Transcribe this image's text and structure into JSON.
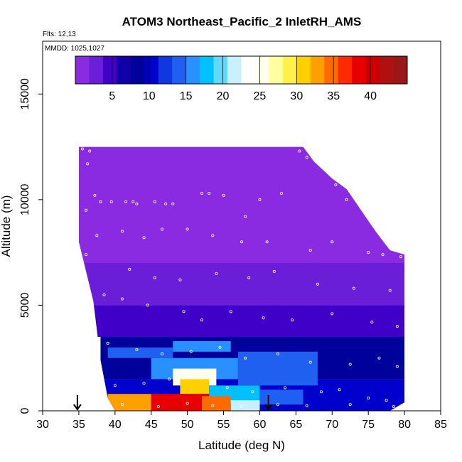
{
  "chart_data": {
    "type": "heatmap",
    "title": "ATOM3 Northeast_Pacific_2 InletRH_AMS",
    "flights_label": "Flts: 12,13",
    "dates_label": "MMDD: 1025,1027",
    "xlabel": "Latitude (deg N)",
    "ylabel": "Altitude (m)",
    "xlim": [
      30,
      85
    ],
    "ylim": [
      0,
      17500
    ],
    "x_ticks": [
      30,
      35,
      40,
      45,
      50,
      55,
      60,
      65,
      70,
      75,
      80,
      85
    ],
    "y_ticks": [
      0,
      5000,
      10000,
      15000
    ],
    "grid": false,
    "colorbar": {
      "placement": "top-inside",
      "range": [
        0,
        45
      ],
      "ticks": [
        5,
        10,
        15,
        20,
        25,
        30,
        35,
        40
      ],
      "colors": [
        "#8a2be2",
        "#6a1ed8",
        "#4000c8",
        "#1000a8",
        "#00009a",
        "#0000cc",
        "#1038e0",
        "#2060f0",
        "#2890ff",
        "#00c0ff",
        "#60d8ff",
        "#c8f0ff",
        "#ffffff",
        "#fffff0",
        "#ffffa0",
        "#fff04a",
        "#ffd000",
        "#ffa000",
        "#ff6a00",
        "#ff2a00",
        "#e80000",
        "#cc0000",
        "#b01010",
        "#9a1818"
      ]
    },
    "arrow_markers_lat": [
      34.8,
      61.2
    ],
    "domain_profile": [
      {
        "lat": 35.0,
        "top": 12500,
        "bottom": 8000
      },
      {
        "lat": 37.0,
        "top": 12500,
        "bottom": 5200
      },
      {
        "lat": 38.0,
        "top": 12500,
        "bottom": 2400
      },
      {
        "lat": 39.0,
        "top": 12500,
        "bottom": 600
      },
      {
        "lat": 40.0,
        "top": 12500,
        "bottom": 0
      },
      {
        "lat": 66.0,
        "top": 12500,
        "bottom": 0
      },
      {
        "lat": 67.5,
        "top": 11800,
        "bottom": 0
      },
      {
        "lat": 70.0,
        "top": 11000,
        "bottom": 0
      },
      {
        "lat": 72.0,
        "top": 10500,
        "bottom": 0
      },
      {
        "lat": 74.0,
        "top": 9500,
        "bottom": 0
      },
      {
        "lat": 76.0,
        "top": 8500,
        "bottom": 0
      },
      {
        "lat": 78.0,
        "top": 7600,
        "bottom": 0
      },
      {
        "lat": 80.0,
        "top": 7400,
        "bottom": 400
      }
    ],
    "regions": [
      {
        "lat_range": [
          35,
          80
        ],
        "alt_range": [
          7000,
          12500
        ],
        "value": 1
      },
      {
        "lat_range": [
          35,
          80
        ],
        "alt_range": [
          5000,
          7000
        ],
        "value": 2
      },
      {
        "lat_range": [
          37,
          80
        ],
        "alt_range": [
          3500,
          5000
        ],
        "value": 5
      },
      {
        "lat_range": [
          38,
          80
        ],
        "alt_range": [
          1500,
          3500
        ],
        "value": 8
      },
      {
        "lat_range": [
          38,
          80
        ],
        "alt_range": [
          0,
          1500
        ],
        "value": 10
      },
      {
        "lat_range": [
          39,
          48
        ],
        "alt_range": [
          2500,
          3000
        ],
        "value": 14
      },
      {
        "lat_range": [
          48,
          56
        ],
        "alt_range": [
          2800,
          3300
        ],
        "value": 16
      },
      {
        "lat_range": [
          45,
          57
        ],
        "alt_range": [
          1500,
          2500
        ],
        "value": 15
      },
      {
        "lat_range": [
          57,
          68
        ],
        "alt_range": [
          1200,
          2800
        ],
        "value": 14
      },
      {
        "lat_range": [
          48,
          54
        ],
        "alt_range": [
          1200,
          2000
        ],
        "value": 26
      },
      {
        "lat_range": [
          49,
          53
        ],
        "alt_range": [
          800,
          1500
        ],
        "value": 30
      },
      {
        "lat_range": [
          53,
          60
        ],
        "alt_range": [
          300,
          1200
        ],
        "value": 18
      },
      {
        "lat_range": [
          60,
          66
        ],
        "alt_range": [
          300,
          1000
        ],
        "value": 14
      },
      {
        "lat_range": [
          39,
          45
        ],
        "alt_range": [
          0,
          800
        ],
        "value": 32
      },
      {
        "lat_range": [
          45,
          53
        ],
        "alt_range": [
          0,
          800
        ],
        "value": 38
      },
      {
        "lat_range": [
          52,
          56
        ],
        "alt_range": [
          0,
          700
        ],
        "value": 35
      },
      {
        "lat_range": [
          56,
          60
        ],
        "alt_range": [
          0,
          500
        ],
        "value": 22
      }
    ],
    "sample_points": [
      {
        "lat": 35.5,
        "alt": 12400
      },
      {
        "lat": 36.5,
        "alt": 12300
      },
      {
        "lat": 36.2,
        "alt": 11700
      },
      {
        "lat": 37.2,
        "alt": 10200
      },
      {
        "lat": 36.0,
        "alt": 9500
      },
      {
        "lat": 37.5,
        "alt": 8300
      },
      {
        "lat": 36.0,
        "alt": 7400
      },
      {
        "lat": 38.0,
        "alt": 9900
      },
      {
        "lat": 39.5,
        "alt": 9900
      },
      {
        "lat": 41.5,
        "alt": 9900
      },
      {
        "lat": 42.5,
        "alt": 9900
      },
      {
        "lat": 43.0,
        "alt": 9800
      },
      {
        "lat": 45.5,
        "alt": 9900
      },
      {
        "lat": 47.0,
        "alt": 9800
      },
      {
        "lat": 48.0,
        "alt": 9800
      },
      {
        "lat": 52.0,
        "alt": 10300
      },
      {
        "lat": 53.0,
        "alt": 10300
      },
      {
        "lat": 55.0,
        "alt": 10200
      },
      {
        "lat": 58.0,
        "alt": 9200
      },
      {
        "lat": 60.0,
        "alt": 10000
      },
      {
        "lat": 63.0,
        "alt": 10300
      },
      {
        "lat": 65.5,
        "alt": 12300
      },
      {
        "lat": 66.5,
        "alt": 12000
      },
      {
        "lat": 68.0,
        "alt": 11800
      },
      {
        "lat": 70.5,
        "alt": 10700
      },
      {
        "lat": 72.0,
        "alt": 10000
      },
      {
        "lat": 74.0,
        "alt": 9700
      },
      {
        "lat": 41.0,
        "alt": 8500
      },
      {
        "lat": 44.0,
        "alt": 8200
      },
      {
        "lat": 46.5,
        "alt": 8600
      },
      {
        "lat": 50.0,
        "alt": 8600
      },
      {
        "lat": 53.5,
        "alt": 8300
      },
      {
        "lat": 57.5,
        "alt": 8000
      },
      {
        "lat": 61.0,
        "alt": 8000
      },
      {
        "lat": 67.0,
        "alt": 7600
      },
      {
        "lat": 70.0,
        "alt": 8000
      },
      {
        "lat": 75.0,
        "alt": 7500
      },
      {
        "lat": 77.0,
        "alt": 7400
      },
      {
        "lat": 79.5,
        "alt": 7300
      },
      {
        "lat": 42.0,
        "alt": 6700
      },
      {
        "lat": 45.5,
        "alt": 6300
      },
      {
        "lat": 49.0,
        "alt": 6200
      },
      {
        "lat": 54.0,
        "alt": 6500
      },
      {
        "lat": 58.5,
        "alt": 6300
      },
      {
        "lat": 62.0,
        "alt": 6600
      },
      {
        "lat": 68.0,
        "alt": 6000
      },
      {
        "lat": 73.0,
        "alt": 5800
      },
      {
        "lat": 78.0,
        "alt": 5700
      },
      {
        "lat": 38.5,
        "alt": 5500
      },
      {
        "lat": 41.0,
        "alt": 5300
      },
      {
        "lat": 44.5,
        "alt": 5000
      },
      {
        "lat": 49.5,
        "alt": 4700
      },
      {
        "lat": 52.0,
        "alt": 4300
      },
      {
        "lat": 56.0,
        "alt": 4700
      },
      {
        "lat": 60.5,
        "alt": 4400
      },
      {
        "lat": 64.5,
        "alt": 4300
      },
      {
        "lat": 70.0,
        "alt": 4600
      },
      {
        "lat": 75.5,
        "alt": 4200
      },
      {
        "lat": 79.0,
        "alt": 4000
      },
      {
        "lat": 39.0,
        "alt": 3200
      },
      {
        "lat": 43.0,
        "alt": 2900
      },
      {
        "lat": 46.5,
        "alt": 2700
      },
      {
        "lat": 50.5,
        "alt": 2800
      },
      {
        "lat": 54.5,
        "alt": 3000
      },
      {
        "lat": 58.0,
        "alt": 2500
      },
      {
        "lat": 62.5,
        "alt": 2700
      },
      {
        "lat": 67.0,
        "alt": 2300
      },
      {
        "lat": 72.5,
        "alt": 2200
      },
      {
        "lat": 76.5,
        "alt": 2500
      },
      {
        "lat": 79.0,
        "alt": 2100
      },
      {
        "lat": 40.0,
        "alt": 1200
      },
      {
        "lat": 44.0,
        "alt": 1300
      },
      {
        "lat": 47.5,
        "alt": 1500
      },
      {
        "lat": 51.0,
        "alt": 1600
      },
      {
        "lat": 55.5,
        "alt": 1100
      },
      {
        "lat": 59.0,
        "alt": 900
      },
      {
        "lat": 63.5,
        "alt": 1100
      },
      {
        "lat": 68.5,
        "alt": 900
      },
      {
        "lat": 71.0,
        "alt": 1000
      },
      {
        "lat": 75.0,
        "alt": 600
      },
      {
        "lat": 77.5,
        "alt": 500
      },
      {
        "lat": 78.5,
        "alt": 200
      },
      {
        "lat": 41.0,
        "alt": 300
      },
      {
        "lat": 46.0,
        "alt": 200
      },
      {
        "lat": 50.0,
        "alt": 350
      },
      {
        "lat": 53.5,
        "alt": 250
      },
      {
        "lat": 57.5,
        "alt": 200
      },
      {
        "lat": 62.5,
        "alt": 300
      },
      {
        "lat": 66.5,
        "alt": 250
      },
      {
        "lat": 72.5,
        "alt": 300
      }
    ]
  }
}
